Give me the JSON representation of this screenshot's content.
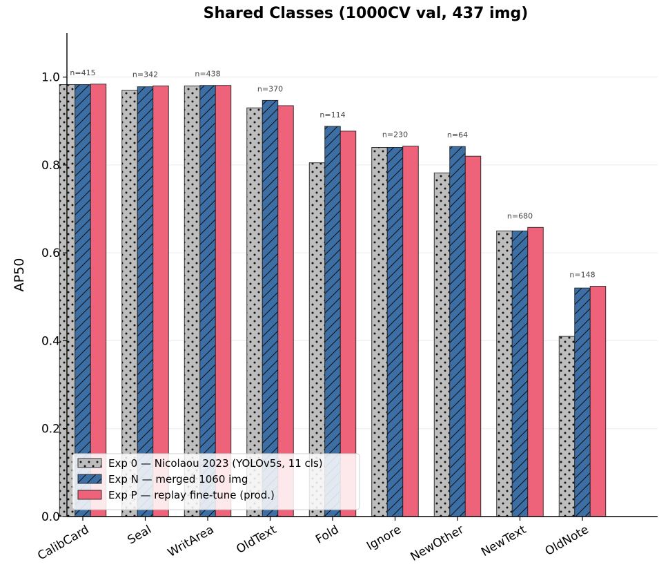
{
  "chart_data": {
    "type": "bar",
    "title": "Shared Classes  (1000CV val, 437 img)",
    "xlabel": "",
    "ylabel": "AP50",
    "ylim": [
      0,
      1.1
    ],
    "yticks": [
      "0.0",
      "0.2",
      "0.4",
      "0.6",
      "0.8",
      "1.0"
    ],
    "grid": "horizontal",
    "legend_position": "lower-left",
    "categories": [
      "CalibCard",
      "Seal",
      "WritArea",
      "OldText",
      "Fold",
      "Ignore",
      "NewOther",
      "NewText",
      "OldNote"
    ],
    "counts": [
      "n=415",
      "n=342",
      "n=438",
      "n=370",
      "n=114",
      "n=230",
      "n=64",
      "n=680",
      "n=148"
    ],
    "series": [
      {
        "name": "Exp 0 — Nicolaou 2023 (YOLOv5s, 11 cls)",
        "color": "#bdbdbd",
        "pattern": "dots",
        "values": [
          0.983,
          0.97,
          0.98,
          0.93,
          0.805,
          0.84,
          0.782,
          0.65,
          0.41
        ]
      },
      {
        "name": "Exp N — merged 1060 img",
        "color": "#3c6fa5",
        "pattern": "hatch",
        "values": [
          0.983,
          0.978,
          0.981,
          0.947,
          0.888,
          0.84,
          0.842,
          0.65,
          0.52
        ]
      },
      {
        "name": "Exp P — replay fine-tune (prod.)",
        "color": "#ee6379",
        "pattern": "solid",
        "values": [
          0.984,
          0.98,
          0.981,
          0.935,
          0.877,
          0.843,
          0.82,
          0.658,
          0.524
        ]
      }
    ]
  }
}
